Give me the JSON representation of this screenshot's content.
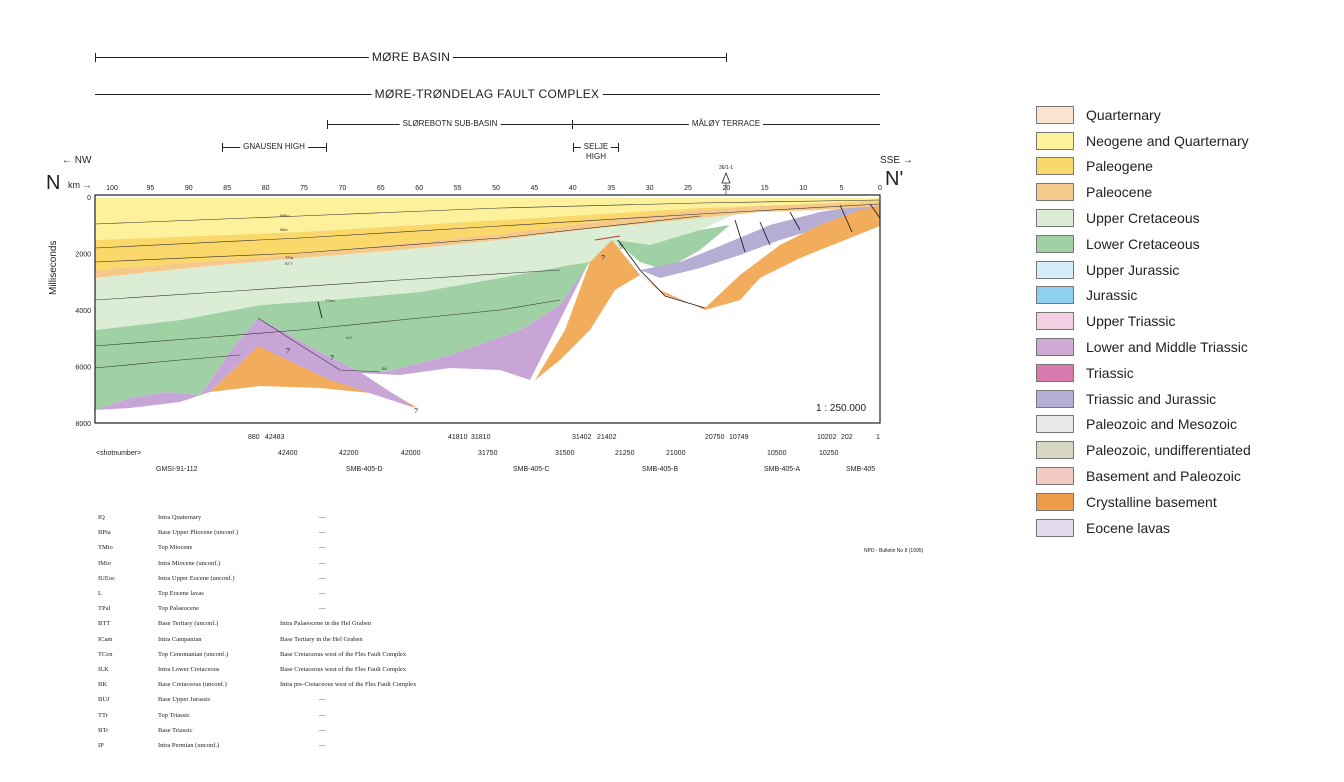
{
  "brackets": {
    "more_basin": "MØRE BASIN",
    "fault_complex": "MØRE-TRØNDELAG FAULT COMPLEX",
    "slorebotn": "SLØREBOTN SUB-BASIN",
    "maloy": "MÅLØY TERRACE",
    "gnausen": "GNAUSEN HIGH",
    "selje_line1": "SELJE",
    "selje_line2": "HIGH"
  },
  "section": {
    "left_label": "N",
    "right_label": "N'",
    "nw_label": "← NW",
    "sse_label": "SSE →",
    "km_label": "km →",
    "y_axis_label": "Milliseconds",
    "km_ticks": [
      "100",
      "95",
      "90",
      "85",
      "80",
      "75",
      "70",
      "65",
      "60",
      "55",
      "50",
      "45",
      "40",
      "35",
      "30",
      "25",
      "20",
      "15",
      "10",
      "5",
      "0"
    ],
    "ms_ticks": [
      "0",
      "2000",
      "4000",
      "6000",
      "8000"
    ],
    "well_label": "36/1-1",
    "scale": "1 : 250.000",
    "horizon_labels": [
      "BPlio",
      "IMio",
      "TPal",
      "BTT",
      "TCen",
      "ILK",
      "BK"
    ]
  },
  "shotpoints": {
    "row1": [
      "880",
      "42483",
      "41810",
      "31810",
      "31402",
      "21402",
      "20750",
      "10749",
      "10202",
      "202",
      "1"
    ],
    "row2": [
      "<shotnumber>",
      "42400",
      "42200",
      "42000",
      "31750",
      "31500",
      "21250",
      "21000",
      "10500",
      "10250"
    ],
    "lines": [
      "GMSI-91-112",
      "SMB-405-D",
      "SMB-405-C",
      "SMB-405-B",
      "SMB-405-A",
      "SMB-405"
    ]
  },
  "horizons": [
    {
      "code": "IQ",
      "name": "Intra Quaternary",
      "note": "—"
    },
    {
      "code": "BPia",
      "name": "Base Upper Pliocene (unconf.)",
      "note": "—"
    },
    {
      "code": "TMio",
      "name": "Top Miocene",
      "note": "—"
    },
    {
      "code": "IMio",
      "name": "Intra Miocene (unconf.)",
      "note": "—"
    },
    {
      "code": "IUEoc",
      "name": "Intra Upper Eocene (unconf.)",
      "note": "—"
    },
    {
      "code": "L",
      "name": "Top Eocene lavas",
      "note": "—"
    },
    {
      "code": "TPal",
      "name": "Top Palaeocene",
      "note": "—"
    },
    {
      "code": "BTT",
      "name": "Base Tertiary (unconf.)",
      "note": "Intra Palaeocene in the Hel Graben"
    },
    {
      "code": "ICam",
      "name": "Intra Campanian",
      "note": "Base Tertiary in the Hel Graben"
    },
    {
      "code": "TCen",
      "name": "Top Cenomanian (unconf.)",
      "note": "Base Cretaceous west of the Fles Fault Complex"
    },
    {
      "code": "ILK",
      "name": "Intra Lower Cretaceous",
      "note": "Base Cretaceous west of the Fles Fault Complex"
    },
    {
      "code": "BK",
      "name": "Base Cretaceous (unconf.)",
      "note": "Intra pre-Cretaceous west of the Fles Fault Complex"
    },
    {
      "code": "BUJ",
      "name": "Base Upper Jurassic",
      "note": "—"
    },
    {
      "code": "TTr",
      "name": "Top Triassic",
      "note": "—"
    },
    {
      "code": "BTr",
      "name": "Base Triassic",
      "note": "—"
    },
    {
      "code": "IP",
      "name": "Intra Permian (unconf.)",
      "note": "—"
    }
  ],
  "source_note": "NPD - Bulletin No 8 (1995)",
  "legend": [
    {
      "label": "Quarternary",
      "color": "#fbe3d0"
    },
    {
      "label": "Neogene and Quarternary",
      "color": "#fdf19c"
    },
    {
      "label": "Paleogene",
      "color": "#fbd86a"
    },
    {
      "label": "Paleocene",
      "color": "#f6c98a"
    },
    {
      "label": "Upper Cretaceous",
      "color": "#dcedd6"
    },
    {
      "label": "Lower Cretaceous",
      "color": "#9fd1a4"
    },
    {
      "label": "Upper Jurassic",
      "color": "#d3ecf7"
    },
    {
      "label": "Jurassic",
      "color": "#8fcff0"
    },
    {
      "label": "Upper Triassic",
      "color": "#f3cfe3"
    },
    {
      "label": "Lower and Middle Triassic",
      "color": "#cfa9d6"
    },
    {
      "label": "Triassic",
      "color": "#d77aad"
    },
    {
      "label": "Triassic and Jurassic",
      "color": "#b7aed6"
    },
    {
      "label": "Paleozoic and Mesozoic",
      "color": "#e8e8ea"
    },
    {
      "label": "Paleozoic, undifferentiated",
      "color": "#d8d7c2"
    },
    {
      "label": "Basement and Paleozoic",
      "color": "#f3c9c4"
    },
    {
      "label": "Crystalline basement",
      "color": "#ef9c4a"
    },
    {
      "label": "Eocene lavas",
      "color": "#e2dcec"
    }
  ]
}
